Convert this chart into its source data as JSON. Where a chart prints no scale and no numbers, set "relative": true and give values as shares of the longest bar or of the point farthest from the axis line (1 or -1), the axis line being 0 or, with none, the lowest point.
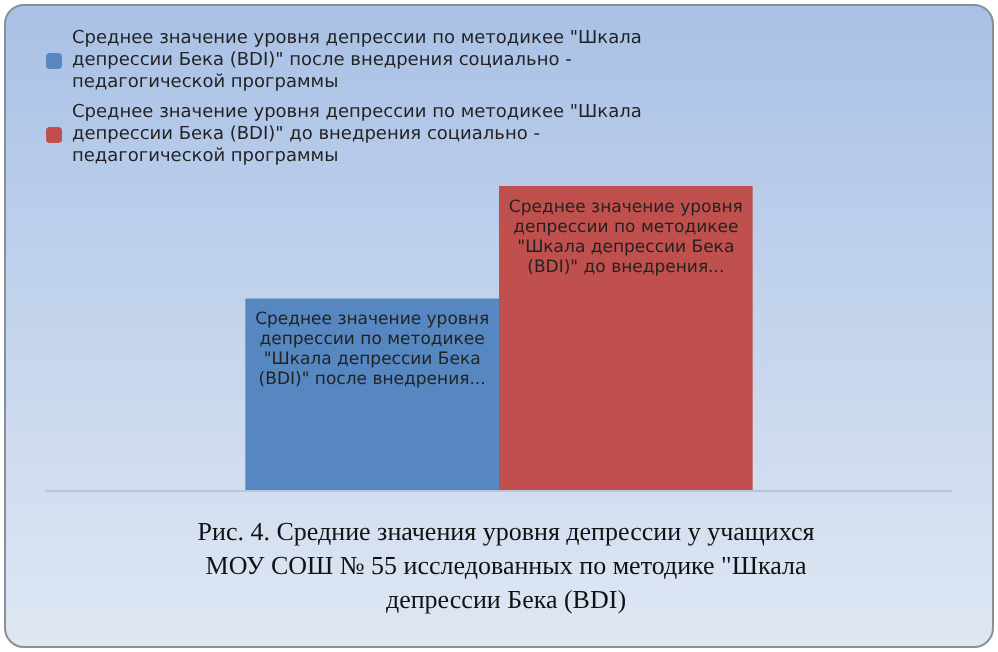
{
  "chart_data": {
    "type": "bar",
    "relative": true,
    "legend": "top",
    "categories": [
      null
    ],
    "series": [
      {
        "name": "Среднее значение уровня депрессии по методикее \"Шкала депрессии Бека (BDI)\" после внедрения социально - педагогической программы",
        "color": "#5787c0",
        "values": [
          0.63
        ]
      },
      {
        "name": "Среднее значение уровня депрессии по методикее \"Шкала депрессии Бека (BDI)\" до внедрения социально - педагогической программы",
        "color": "#c0504d",
        "values": [
          1
        ]
      }
    ],
    "annotations": [
      {
        "text": "Среднее значение уровня депрессии по методикее \"Шкала депрессии Бека (BDI)\" после внедрения...",
        "y": 0.63
      },
      {
        "text": "Среднее значение уровня депрессии по методикее \"Шкала депрессии Бека (BDI)\" до внедрения...",
        "y": 1
      },
      "Рис. 4. Средние значения уровня депрессии у учащихся МОУ СОШ № 55 исследованных по методике \"Шкала депрессии Бека (BDI)"
    ]
  }
}
